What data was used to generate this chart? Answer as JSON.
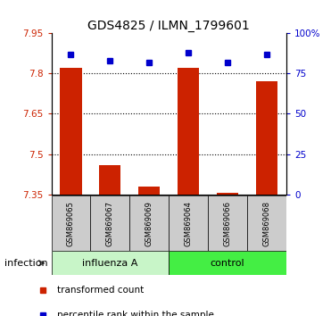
{
  "title": "GDS4825 / ILMN_1799601",
  "samples": [
    "GSM869065",
    "GSM869067",
    "GSM869069",
    "GSM869064",
    "GSM869066",
    "GSM869068"
  ],
  "red_values": [
    7.82,
    7.46,
    7.38,
    7.82,
    7.355,
    7.77
  ],
  "blue_values_pct": [
    87,
    83,
    82,
    88,
    82,
    87
  ],
  "ylim": [
    7.35,
    7.95
  ],
  "yticks_left": [
    7.35,
    7.5,
    7.65,
    7.8,
    7.95
  ],
  "yticks_right": [
    0,
    25,
    50,
    75,
    100
  ],
  "y_right_labels": [
    "0",
    "25",
    "50",
    "75",
    "100%"
  ],
  "left_color": "#cc2200",
  "right_color": "#0000cc",
  "bar_width": 0.55,
  "influenza_color": "#c8f5c8",
  "control_color": "#44ee44",
  "sample_bg_color": "#cccccc",
  "infection_label": "infection",
  "legend_red": "transformed count",
  "legend_blue": "percentile rank within the sample",
  "title_fontsize": 10,
  "tick_fontsize": 7.5,
  "sample_fontsize": 6,
  "group_fontsize": 8,
  "legend_fontsize": 7.5
}
